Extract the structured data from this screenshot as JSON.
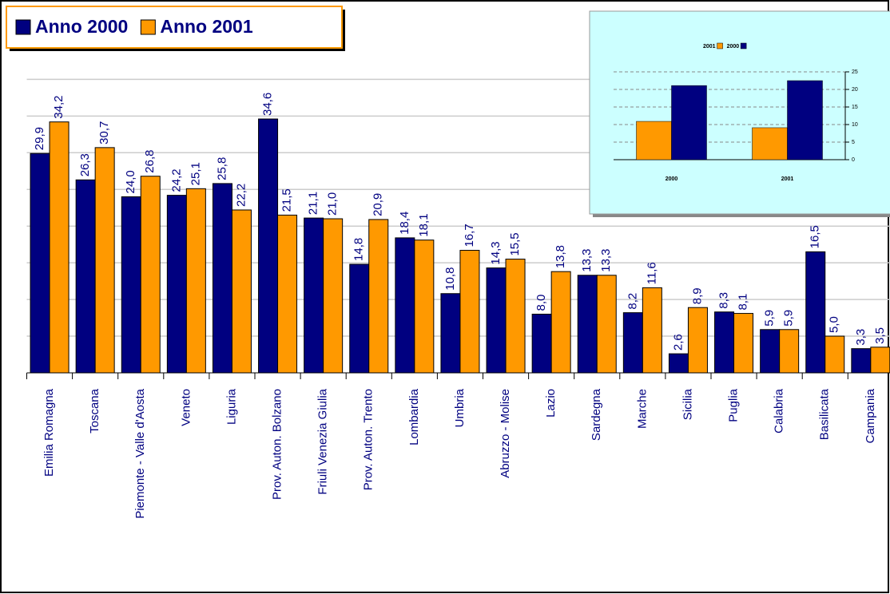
{
  "chart_data": [
    {
      "type": "bar",
      "categories": [
        "Emilia Romagna",
        "Toscana",
        "Piemonte - Valle d'Aosta",
        "Veneto",
        "Liguria",
        "Prov. Auton. Bolzano",
        "Friuli Venezia Giulia",
        "Prov. Auton. Trento",
        "Lombardia",
        "Umbria",
        "Abruzzo - Molise",
        "Lazio",
        "Sardegna",
        "Marche",
        "Sicilia",
        "Puglia",
        "Calabria",
        "Basilicata",
        "Campania"
      ],
      "series": [
        {
          "name": "Anno 2000",
          "color": "#000080",
          "values": [
            29.9,
            26.3,
            24.0,
            24.2,
            25.8,
            34.6,
            21.1,
            14.8,
            18.4,
            10.8,
            14.3,
            8.0,
            13.3,
            8.2,
            2.6,
            8.3,
            5.9,
            16.5,
            3.3
          ],
          "value_labels": [
            "29,9",
            "26,3",
            "24,0",
            "24,2",
            "25,8",
            "34,6",
            "21,1",
            "14,8",
            "18,4",
            "10,8",
            "14,3",
            "8,0",
            "13,3",
            "8,2",
            "2,6",
            "8,3",
            "5,9",
            "16,5",
            "3,3"
          ]
        },
        {
          "name": "Anno 2001",
          "color": "#FF9900",
          "values": [
            34.2,
            30.7,
            26.8,
            25.1,
            22.2,
            21.5,
            21.0,
            20.9,
            18.1,
            16.7,
            15.5,
            13.8,
            13.3,
            11.6,
            8.9,
            8.1,
            5.9,
            5.0,
            3.5
          ],
          "value_labels": [
            "34,2",
            "30,7",
            "26,8",
            "25,1",
            "22,2",
            "21,5",
            "21,0",
            "20,9",
            "18,1",
            "16,7",
            "15,5",
            "13,8",
            "13,3",
            "11,6",
            "8,9",
            "8,1",
            "5,9",
            "5,0",
            "3,5"
          ]
        }
      ],
      "ylim": [
        0,
        45
      ],
      "yticks": [
        5,
        10,
        15,
        20,
        25,
        30,
        35,
        40
      ],
      "grid": true
    },
    {
      "type": "bar",
      "categories": [
        "2000",
        "2001"
      ],
      "series": [
        {
          "name": "2001",
          "color": "#FF9900",
          "values": [
            10.9,
            9.1
          ]
        },
        {
          "name": "2000",
          "color": "#000080",
          "values": [
            21.1,
            22.5
          ]
        }
      ],
      "ylim": [
        0,
        25
      ],
      "yticks": [
        0,
        5,
        10,
        15,
        20,
        25
      ],
      "grid": true
    }
  ]
}
